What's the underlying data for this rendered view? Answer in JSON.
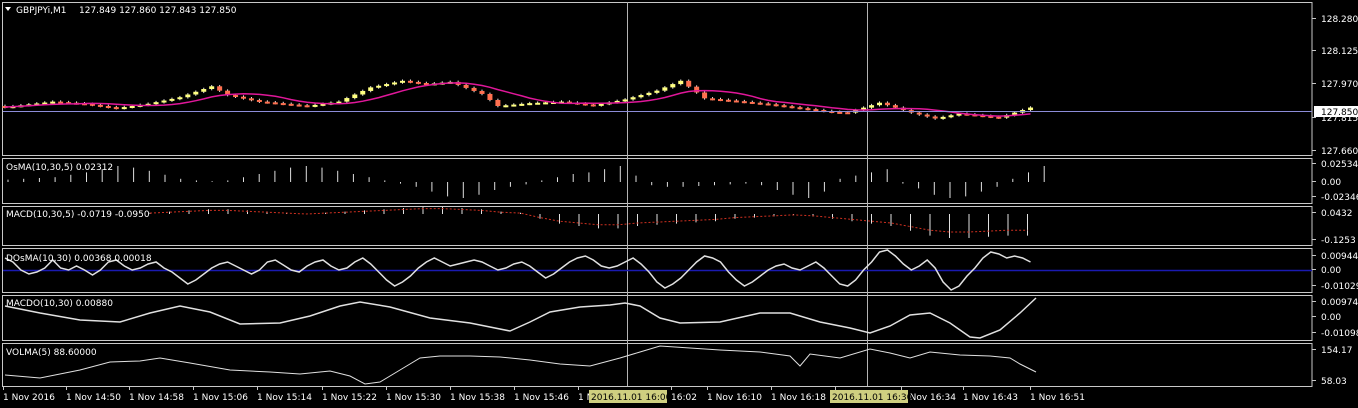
{
  "main": {
    "symbol": "GBPJPYi,M1",
    "ohlc": "127.849 127.860 127.843 127.850",
    "price_labels": [
      "128.280",
      "128.125",
      "127.970",
      "127.815",
      "127.660"
    ],
    "current_price": "127.850",
    "colors": {
      "bull": "#ffff80",
      "bear": "#ff7050",
      "ma": "#e0179a",
      "price_line": "#8c8cd8"
    }
  },
  "panels": [
    {
      "id": "osma",
      "label": "OsMA(10,30,5) 0.02312",
      "axis_labels": [
        "0.02534",
        "0.00",
        "-0.02346"
      ]
    },
    {
      "id": "macd",
      "label": "MACD(10,30,5) -0.0719 -0.0950",
      "axis_labels": [
        "0.0432",
        "-0.1253"
      ]
    },
    {
      "id": "dosma",
      "label": "DOsMA(10,30) 0.00368 0.00018",
      "axis_labels": [
        "0.00944",
        "0.00",
        "-0.01029"
      ]
    },
    {
      "id": "macdo",
      "label": "MACDO(10,30) 0.00880",
      "axis_labels": [
        "0.00974",
        "0.00",
        "-0.01098"
      ]
    },
    {
      "id": "volma",
      "label": "VOLMA(5) 88.60000",
      "axis_labels": [
        "154.17",
        "58.03"
      ]
    }
  ],
  "time_axis": {
    "labels": [
      "1 Nov 2016",
      "1 Nov 14:50",
      "1 Nov 14:58",
      "1 Nov 15:06",
      "1 Nov 15:14",
      "1 Nov 15:22",
      "1 Nov 15:30",
      "1 Nov 15:38",
      "1 Nov 15:46",
      "1 Nov 15:54",
      "16:02",
      "1 Nov 16:10",
      "1 Nov 16:18",
      "1 Nov 16:26",
      "1 Nov 16:34",
      "1 Nov 16:43",
      "1 Nov 16:51"
    ],
    "crosshair_1": "2016.11.01 16:00",
    "crosshair_2": "2016.11.01 16:30"
  }
}
